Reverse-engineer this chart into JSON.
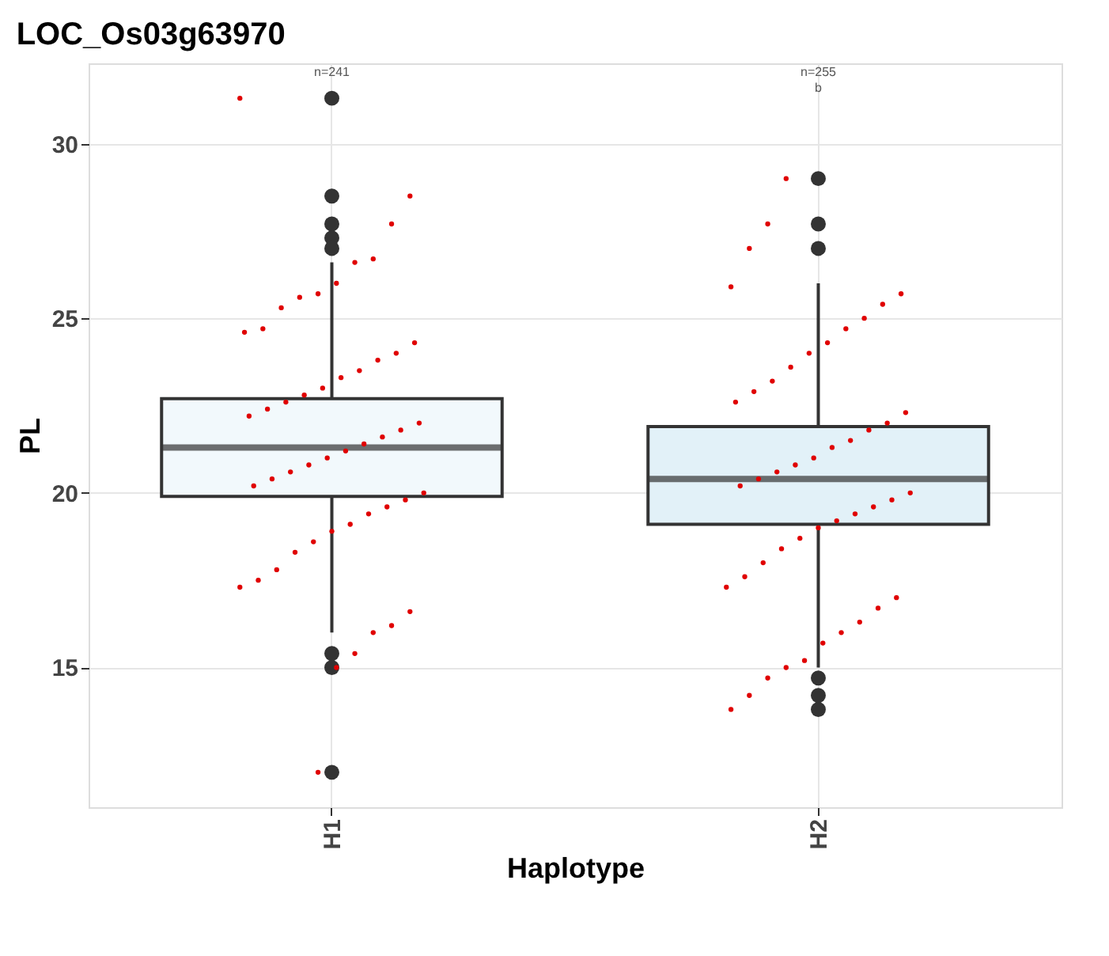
{
  "chart_data": {
    "type": "box",
    "title": "LOC_Os03g63970",
    "xlabel": "Haplotype",
    "ylabel": "PL",
    "categories": [
      "H1",
      "H2"
    ],
    "colors": [
      "#f2f9fc",
      "#e2f1f8"
    ],
    "boxes": [
      {
        "low": 16.0,
        "q1": 19.9,
        "median": 21.3,
        "q3": 22.7,
        "high": 26.6,
        "outliers": [
          31.3,
          28.5,
          27.7,
          27.3,
          27.0,
          15.4,
          15.0,
          12.0
        ]
      },
      {
        "low": 15.0,
        "q1": 19.1,
        "median": 20.4,
        "q3": 21.9,
        "high": 26.0,
        "outliers": [
          29.0,
          27.7,
          27.0,
          14.7,
          14.2,
          13.8
        ]
      }
    ],
    "series": [
      {
        "type": "scatter",
        "color": "#e00000",
        "x": [
          "H1",
          "H1",
          "H1",
          "H1",
          "H1",
          "H1",
          "H1",
          "H1",
          "H1",
          "H1",
          "H1",
          "H1",
          "H1",
          "H1",
          "H1",
          "H1",
          "H1",
          "H1",
          "H1",
          "H1",
          "H1",
          "H1",
          "H1",
          "H1",
          "H1",
          "H1",
          "H1",
          "H1",
          "H1",
          "H1",
          "H1",
          "H1",
          "H1",
          "H1",
          "H1",
          "H1",
          "H1",
          "H1",
          "H1",
          "H1",
          "H1",
          "H1",
          "H1",
          "H1",
          "H1",
          "H1",
          "H1",
          "H1",
          "H2",
          "H2",
          "H2",
          "H2",
          "H2",
          "H2",
          "H2",
          "H2",
          "H2",
          "H2",
          "H2",
          "H2",
          "H2",
          "H2",
          "H2",
          "H2",
          "H2",
          "H2",
          "H2",
          "H2",
          "H2",
          "H2",
          "H2",
          "H2",
          "H2",
          "H2",
          "H2",
          "H2",
          "H2",
          "H2",
          "H2",
          "H2",
          "H2",
          "H2",
          "H2",
          "H2",
          "H2",
          "H2",
          "H2",
          "H2",
          "H2",
          "H2",
          "H2",
          "H2",
          "H2"
        ],
        "values": [
          31.3,
          28.5,
          27.7,
          26.7,
          26.6,
          26.0,
          25.7,
          25.6,
          25.3,
          24.7,
          24.6,
          24.3,
          24.0,
          23.8,
          23.5,
          23.3,
          23.0,
          22.8,
          22.6,
          22.4,
          22.2,
          22.0,
          21.8,
          21.6,
          21.4,
          21.2,
          21.0,
          20.8,
          20.6,
          20.4,
          20.2,
          20.0,
          19.8,
          19.6,
          19.4,
          19.1,
          18.9,
          18.6,
          18.3,
          17.8,
          17.5,
          17.3,
          16.6,
          16.2,
          16.0,
          15.4,
          15.0,
          12.0,
          29.0,
          27.7,
          27.0,
          25.9,
          25.7,
          25.4,
          25.0,
          24.7,
          24.3,
          24.0,
          23.6,
          23.2,
          22.9,
          22.6,
          22.3,
          22.0,
          21.8,
          21.5,
          21.3,
          21.0,
          20.8,
          20.6,
          20.4,
          20.2,
          20.0,
          19.8,
          19.6,
          19.4,
          19.2,
          19.0,
          18.7,
          18.4,
          18.0,
          17.6,
          17.3,
          17.0,
          16.7,
          16.3,
          16.0,
          15.7,
          15.2,
          15.0,
          14.7,
          14.2,
          13.8
        ]
      }
    ],
    "ylim": [
      11.0,
      32.3
    ],
    "yticks": [
      15,
      20,
      25,
      30
    ],
    "grid": true,
    "annotations": [
      "n=241",
      "n=255",
      "b"
    ]
  }
}
